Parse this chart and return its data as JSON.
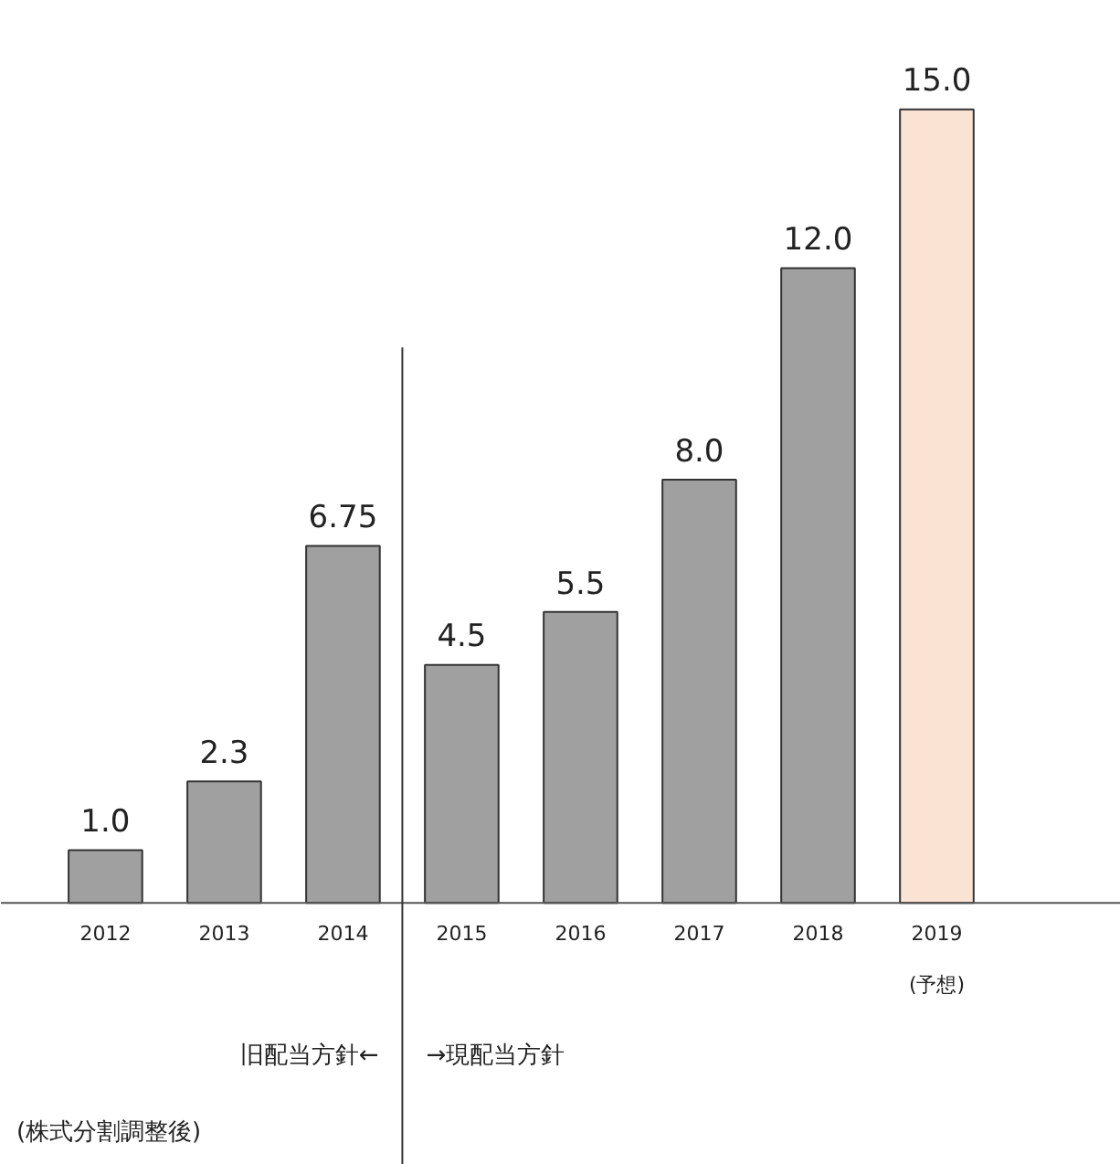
{
  "chart_data": {
    "type": "bar",
    "categories": [
      "2012",
      "2013",
      "2014",
      "2015",
      "2016",
      "2017",
      "2018",
      "2019\n(予想)"
    ],
    "values": [
      1.0,
      2.3,
      6.75,
      4.5,
      5.5,
      8.0,
      12.0,
      15.0
    ],
    "value_labels": [
      "1.0",
      "2.3",
      "6.75",
      "4.5",
      "5.5",
      "8.0",
      "12.0",
      "15.0"
    ],
    "colors": [
      "#a0a0a0",
      "#a0a0a0",
      "#a0a0a0",
      "#a0a0a0",
      "#a0a0a0",
      "#a0a0a0",
      "#a0a0a0",
      "#fbe3d3"
    ],
    "annotations": [
      "旧配当方針←",
      "→現配当方針",
      "(株式分割調整後)"
    ]
  }
}
